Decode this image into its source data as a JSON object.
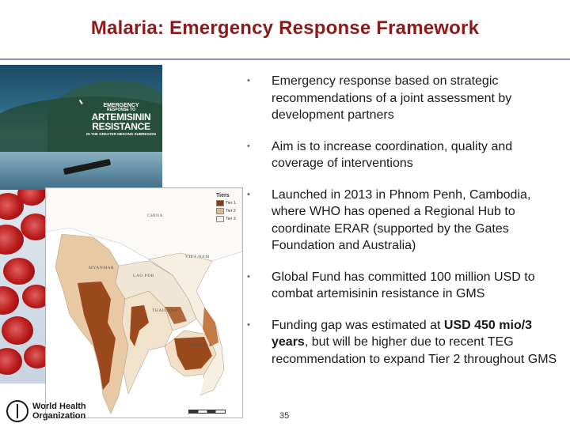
{
  "slide": {
    "title": "Malaria: Emergency Response Framework",
    "page_number": "35",
    "accent_color": "#8b1a1a"
  },
  "cover": {
    "line1": "EMERGENCY",
    "line2": "RESPONSE TO",
    "line3": "ARTEMISININ RESISTANCE",
    "line4": "IN THE GREATER MEKONG SUBREGION"
  },
  "map": {
    "legend_title": "Tiers",
    "legend_items": [
      {
        "label": "Tier 1",
        "color": "#8b3a12"
      },
      {
        "label": "Tier 2",
        "color": "#e8b88a"
      },
      {
        "label": "Tier 3",
        "color": "#f5f0e6"
      }
    ],
    "country_labels": [
      "CHINA",
      "MYANMAR",
      "LAO PDR",
      "VIET NAM",
      "THAILAND",
      "CAMBODIA"
    ]
  },
  "bullets": [
    {
      "text": "Emergency response based on strategic recommendations of a joint assessment by development partners"
    },
    {
      "text": "Aim is to increase coordination, quality and coverage of interventions"
    },
    {
      "text": "Launched in 2013 in Phnom Penh, Cambodia, where WHO has opened a Regional Hub to coordinate ERAR (supported by the Gates Foundation and Australia)"
    },
    {
      "text": "Global Fund has committed 100 million USD to combat artemisinin resistance in GMS"
    },
    {
      "pre": "Funding gap was estimated at ",
      "bold": "USD 450 mio/3 years",
      "post": ",  but will be higher due to recent TEG recommendation to expand Tier 2 throughout GMS"
    }
  ],
  "footer": {
    "org_line1": "World Health",
    "org_line2": "Organization"
  }
}
